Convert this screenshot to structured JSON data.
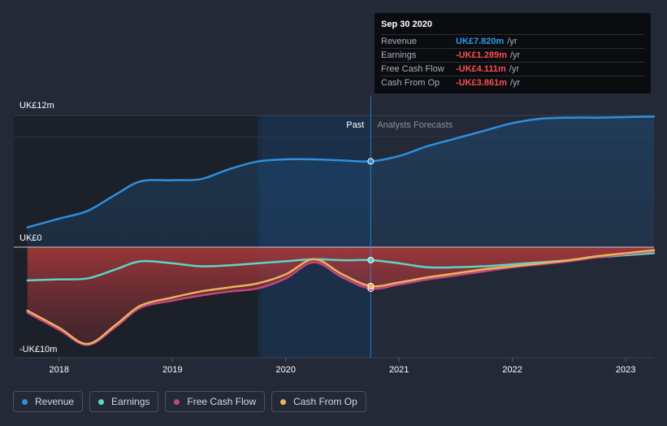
{
  "tooltip": {
    "date": "Sep 30 2020",
    "rows": [
      {
        "label": "Revenue",
        "value": "UK£7.820m",
        "unit": "/yr",
        "color": "#2e9be8"
      },
      {
        "label": "Earnings",
        "value": "-UK£1.289m",
        "unit": "/yr",
        "color": "#ff4d4d"
      },
      {
        "label": "Free Cash Flow",
        "value": "-UK£4.111m",
        "unit": "/yr",
        "color": "#ff4d4d"
      },
      {
        "label": "Cash From Op",
        "value": "-UK£3.861m",
        "unit": "/yr",
        "color": "#ff4d4d"
      }
    ]
  },
  "legend": [
    {
      "label": "Revenue",
      "color": "#2e8fe0"
    },
    {
      "label": "Earnings",
      "color": "#5fd3c8"
    },
    {
      "label": "Free Cash Flow",
      "color": "#c9437f"
    },
    {
      "label": "Cash From Op",
      "color": "#e8b45a"
    }
  ],
  "chart_data": {
    "type": "line",
    "title": "",
    "y_unit": "UK£m",
    "ylim": [
      -10,
      12
    ],
    "y_tick_labels": [
      {
        "value": 12,
        "label": "UK£12m"
      },
      {
        "value": 0,
        "label": "UK£0"
      },
      {
        "value": -10,
        "label": "-UK£10m"
      }
    ],
    "xlim": [
      2017.6,
      2023.25
    ],
    "x_tick_labels": [
      "2018",
      "2019",
      "2020",
      "2021",
      "2022",
      "2023"
    ],
    "x_ticks": [
      2018,
      2019,
      2020,
      2021,
      2022,
      2023
    ],
    "past_label": "Past",
    "forecast_label": "Analysts Forecasts",
    "highlight_start": 2019.75,
    "divider_x": 2020.75,
    "series": [
      {
        "name": "Revenue",
        "color": "#2e8fe0",
        "x": [
          2017.72,
          2018.0,
          2018.25,
          2018.5,
          2018.72,
          2019.0,
          2019.25,
          2019.5,
          2019.75,
          2020.0,
          2020.25,
          2020.5,
          2020.75,
          2021.0,
          2021.25,
          2021.5,
          2021.75,
          2022.0,
          2022.25,
          2022.5,
          2022.75,
          2023.0,
          2023.25
        ],
        "y": [
          1.8,
          2.6,
          3.3,
          4.8,
          6.0,
          6.1,
          6.2,
          7.1,
          7.8,
          8.0,
          8.0,
          7.9,
          7.82,
          8.3,
          9.2,
          9.9,
          10.6,
          11.3,
          11.7,
          11.8,
          11.8,
          11.85,
          11.9
        ]
      },
      {
        "name": "Earnings",
        "color": "#5fd3c8",
        "x": [
          2017.72,
          2018.0,
          2018.25,
          2018.5,
          2018.72,
          2019.0,
          2019.25,
          2019.5,
          2019.75,
          2020.0,
          2020.25,
          2020.5,
          2020.75,
          2021.0,
          2021.25,
          2021.5,
          2021.75,
          2022.0,
          2022.25,
          2022.5,
          2022.75,
          2023.0,
          2023.25
        ],
        "y": [
          -3.3,
          -3.2,
          -3.1,
          -2.2,
          -1.4,
          -1.6,
          -1.9,
          -1.8,
          -1.6,
          -1.4,
          -1.2,
          -1.3,
          -1.289,
          -1.6,
          -2.0,
          -2.0,
          -1.9,
          -1.7,
          -1.5,
          -1.3,
          -1.0,
          -0.8,
          -0.6
        ]
      },
      {
        "name": "Free Cash Flow",
        "color": "#c9437f",
        "x": [
          2017.72,
          2018.0,
          2018.25,
          2018.5,
          2018.72,
          2019.0,
          2019.25,
          2019.5,
          2019.75,
          2020.0,
          2020.25,
          2020.5,
          2020.75,
          2021.0,
          2021.25,
          2021.5,
          2021.75,
          2022.0,
          2022.25,
          2022.5,
          2022.75,
          2023.0,
          2023.25
        ],
        "y": [
          -6.5,
          -8.2,
          -9.7,
          -7.9,
          -6.0,
          -5.3,
          -4.8,
          -4.4,
          -4.1,
          -3.1,
          -1.5,
          -3.0,
          -4.111,
          -3.7,
          -3.2,
          -2.8,
          -2.4,
          -2.0,
          -1.7,
          -1.4,
          -1.0,
          -0.7,
          -0.4
        ]
      },
      {
        "name": "Cash From Op",
        "color": "#e8b45a",
        "x": [
          2017.72,
          2018.0,
          2018.25,
          2018.5,
          2018.72,
          2019.0,
          2019.25,
          2019.5,
          2019.75,
          2020.0,
          2020.25,
          2020.5,
          2020.75,
          2021.0,
          2021.25,
          2021.5,
          2021.75,
          2022.0,
          2022.25,
          2022.5,
          2022.75,
          2023.0,
          2023.25
        ],
        "y": [
          -6.3,
          -8.0,
          -9.6,
          -7.7,
          -5.8,
          -5.0,
          -4.4,
          -4.0,
          -3.6,
          -2.7,
          -1.2,
          -2.7,
          -3.861,
          -3.5,
          -3.0,
          -2.6,
          -2.2,
          -1.9,
          -1.6,
          -1.3,
          -0.9,
          -0.6,
          -0.3
        ]
      }
    ]
  }
}
